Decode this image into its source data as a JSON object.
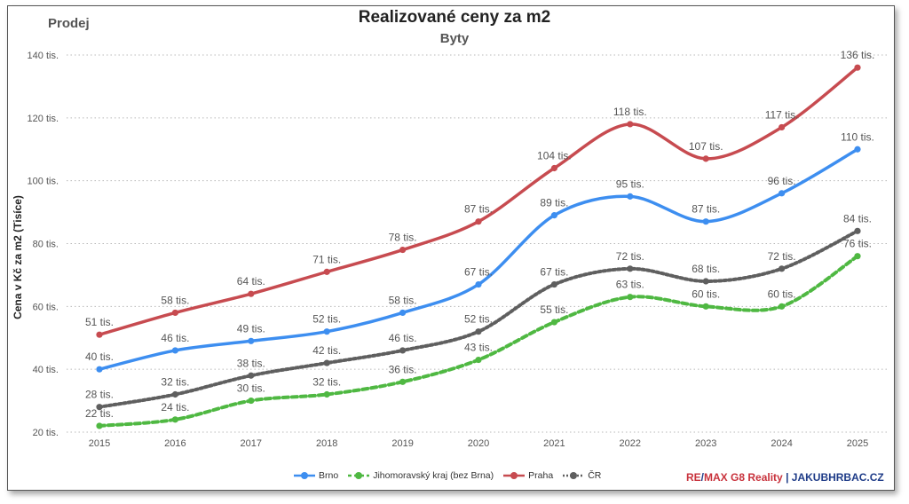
{
  "corner_label": "Prodej",
  "chart_data": {
    "type": "line",
    "title": "Realizované ceny za m2",
    "subtitle": "Byty",
    "xlabel": "",
    "ylabel": "Cena v Kč za m2 (Tisíce)",
    "ylim": [
      20,
      140
    ],
    "yticks": [
      20,
      40,
      60,
      80,
      100,
      120,
      140
    ],
    "ytick_labels": [
      "20 tis.",
      "40 tis.",
      "60 tis.",
      "80 tis.",
      "100 tis.",
      "120 tis.",
      "140 tis."
    ],
    "x": [
      "2015",
      "2016",
      "2017",
      "2018",
      "2019",
      "2020",
      "2021",
      "2022",
      "2023",
      "2024",
      "2025"
    ],
    "grid": true,
    "legend_position": "bottom",
    "series": [
      {
        "name": "Brno",
        "color": "#3d8ef0",
        "style": "solid",
        "values": [
          40,
          46,
          49,
          52,
          58,
          67,
          89,
          95,
          87,
          96,
          110
        ],
        "labels": [
          "40 tis.",
          "46 tis.",
          "49 tis.",
          "52 tis.",
          "58 tis.",
          "67 tis.",
          "89 tis.",
          "95 tis.",
          "87 tis.",
          "96 tis.",
          "110 tis."
        ]
      },
      {
        "name": "Jihomoravský kraj (bez Brna)",
        "color": "#4fb842",
        "style": "dashed",
        "values": [
          22,
          24,
          30,
          32,
          36,
          43,
          55,
          63,
          60,
          60,
          76
        ],
        "labels": [
          "22 tis.",
          "24 tis.",
          "30 tis.",
          "32 tis.",
          "36 tis.",
          "43 tis.",
          "55 tis.",
          "63 tis.",
          "60 tis.",
          "60 tis.",
          "76 tis."
        ]
      },
      {
        "name": "Praha",
        "color": "#c74b50",
        "style": "solid",
        "values": [
          51,
          58,
          64,
          71,
          78,
          87,
          104,
          118,
          107,
          117,
          136
        ],
        "labels": [
          "51 tis.",
          "58 tis.",
          "64 tis.",
          "71 tis.",
          "78 tis.",
          "87 tis.",
          "104 tis.",
          "118 tis.",
          "107 tis.",
          "117 tis.",
          "136 tis."
        ]
      },
      {
        "name": "ČR",
        "color": "#5f5f5f",
        "style": "dotted",
        "values": [
          28,
          32,
          38,
          42,
          46,
          52,
          67,
          72,
          68,
          72,
          84
        ],
        "labels": [
          "28 tis.",
          "32 tis.",
          "38 tis.",
          "42 tis.",
          "46 tis.",
          "52 tis.",
          "67 tis.",
          "72 tis.",
          "68 tis.",
          "72 tis.",
          "84 tis."
        ]
      }
    ]
  },
  "branding": {
    "remax_re": "RE",
    "remax_slash": "/",
    "remax_rest": "MAX G8 Reality",
    "separator": "|",
    "site": "JAKUBHRBAC.CZ"
  }
}
